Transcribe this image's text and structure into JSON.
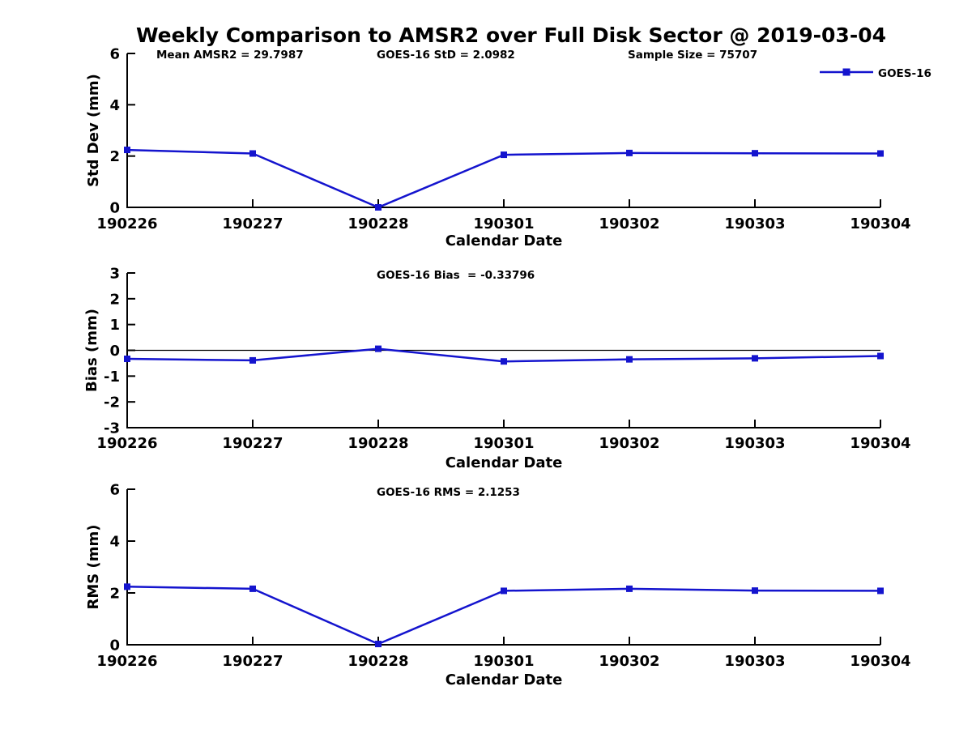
{
  "title": "Weekly Comparison to AMSR2 over Full Disk Sector @ 2019-03-04",
  "colors": {
    "series_blue": "#1414ce",
    "axis_black": "#000000",
    "background": "#ffffff"
  },
  "legend": {
    "label": "GOES-16",
    "marker": "square",
    "position": "top-right"
  },
  "chart_data": [
    {
      "type": "line",
      "name": "std-dev",
      "annotations": [
        "Mean AMSR2 = 29.7987",
        "GOES-16 StD = 2.0982",
        "Sample Size = 75707"
      ],
      "categories": [
        "190226",
        "190227",
        "190228",
        "190301",
        "190302",
        "190303",
        "190304"
      ],
      "series": [
        {
          "name": "GOES-16",
          "values": [
            2.24,
            2.1,
            0.0,
            2.05,
            2.12,
            2.11,
            2.1
          ]
        }
      ],
      "xlabel": "Calendar Date",
      "ylabel": "Std Dev (mm)",
      "ylim": [
        0,
        6
      ],
      "yticks": [
        0,
        2,
        4,
        6
      ],
      "zero_line": false,
      "grid": false,
      "legend_visible": true
    },
    {
      "type": "line",
      "name": "bias",
      "annotations": [
        "GOES-16 Bias  = -0.33796"
      ],
      "categories": [
        "190226",
        "190227",
        "190228",
        "190301",
        "190302",
        "190303",
        "190304"
      ],
      "series": [
        {
          "name": "GOES-16",
          "values": [
            -0.33,
            -0.39,
            0.06,
            -0.43,
            -0.35,
            -0.31,
            -0.22
          ]
        }
      ],
      "xlabel": "Calendar Date",
      "ylabel": "Bias (mm)",
      "ylim": [
        -3,
        3
      ],
      "yticks": [
        -3,
        -2,
        -1,
        0,
        1,
        2,
        3
      ],
      "zero_line": true,
      "grid": false,
      "legend_visible": false
    },
    {
      "type": "line",
      "name": "rms",
      "annotations": [
        "GOES-16 RMS = 2.1253"
      ],
      "categories": [
        "190226",
        "190227",
        "190228",
        "190301",
        "190302",
        "190303",
        "190304"
      ],
      "series": [
        {
          "name": "GOES-16",
          "values": [
            2.24,
            2.16,
            0.03,
            2.08,
            2.16,
            2.09,
            2.08
          ]
        }
      ],
      "xlabel": "Calendar Date",
      "ylabel": "RMS (mm)",
      "ylim": [
        0,
        6
      ],
      "yticks": [
        0,
        2,
        4,
        6
      ],
      "zero_line": false,
      "grid": false,
      "legend_visible": false
    }
  ]
}
